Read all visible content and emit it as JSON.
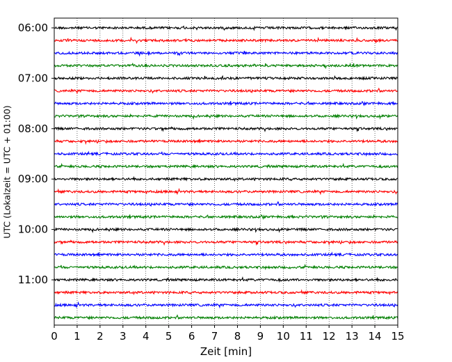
{
  "chart_data": {
    "type": "line",
    "title": "",
    "xlabel": "Zeit  [min]",
    "ylabel": "UTC (Lokalzeit = UTC + 01:00)",
    "xlim": [
      0,
      15
    ],
    "x_ticks": [
      "0",
      "1",
      "2",
      "3",
      "4",
      "5",
      "6",
      "7",
      "8",
      "9",
      "10",
      "11",
      "12",
      "13",
      "14",
      "15"
    ],
    "y_ticks": [
      "06:00",
      "07:00",
      "08:00",
      "09:00",
      "10:00",
      "11:00"
    ],
    "trace_start": "06:00",
    "trace_interval_min": 15,
    "trace_count": 24,
    "trace_colors": [
      "#000000",
      "#ff0000",
      "#0000ff",
      "#007f00"
    ],
    "grid": "vertical dotted"
  }
}
